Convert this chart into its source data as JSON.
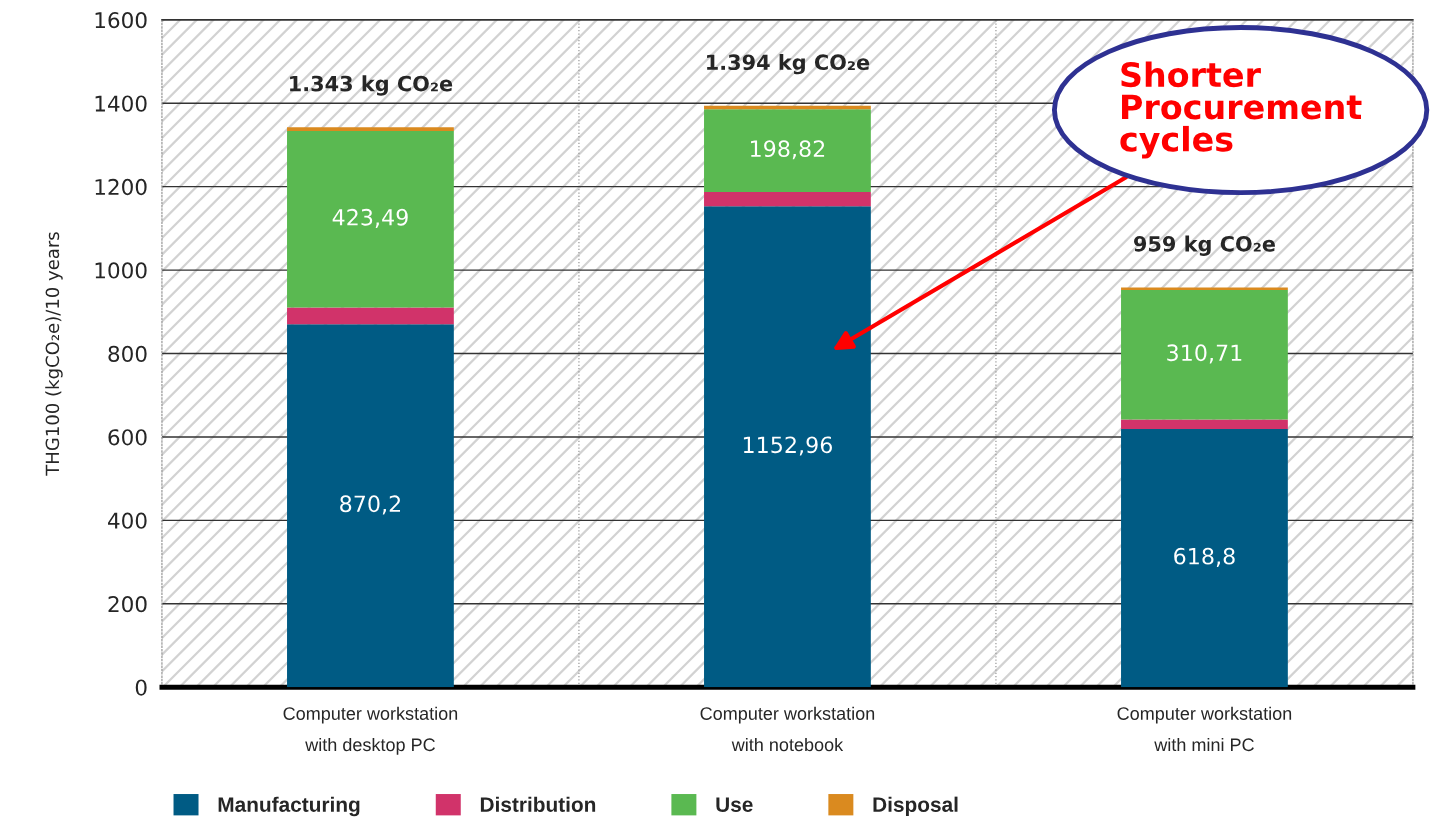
{
  "chart_data": {
    "type": "bar",
    "stacked": true,
    "ylabel": "THG100 (kgCO₂e)/10 years",
    "categories": [
      "Computer workstation\nwith desktop PC",
      "Computer workstation\nwith notebook",
      "Computer workstation\nwith mini PC"
    ],
    "series": [
      {
        "name": "Manufacturing",
        "color": "#005b84",
        "values": [
          870.2,
          1152.96,
          618.8
        ],
        "value_labels": [
          "870,2",
          "1152,96",
          "618,8"
        ]
      },
      {
        "name": "Distribution",
        "color": "#d1336a",
        "values": [
          40,
          34,
          23
        ]
      },
      {
        "name": "Use",
        "color": "#5ab951",
        "values": [
          423.49,
          198.82,
          310.71
        ],
        "value_labels": [
          "423,49",
          "198,82",
          "310,71"
        ]
      },
      {
        "name": "Disposal",
        "color": "#da8a1f",
        "values": [
          9,
          8,
          6
        ]
      }
    ],
    "totals": [
      "1.343 kg CO₂e",
      "1.394 kg CO₂e",
      "959 kg CO₂e"
    ],
    "ylim": [
      0,
      1600
    ],
    "yticks": [
      0,
      200,
      400,
      600,
      800,
      1000,
      1200,
      1400,
      1600
    ],
    "grid": "y",
    "legend": "bottom",
    "annotations": [
      "Shorter\nProcurement\ncycles"
    ]
  }
}
